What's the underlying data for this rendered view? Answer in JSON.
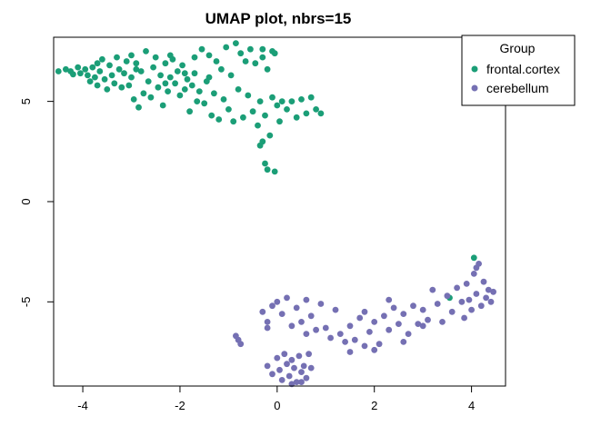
{
  "chart_data": {
    "type": "scatter",
    "title": "UMAP plot, nbrs=15",
    "xlabel": "",
    "ylabel": "",
    "xlim": [
      -4.6,
      4.7
    ],
    "ylim": [
      -9.2,
      8.2
    ],
    "x_ticks": [
      -4,
      -2,
      0,
      2,
      4
    ],
    "x_tick_labels": [
      "-4",
      "-2",
      "0",
      "2",
      "4"
    ],
    "y_ticks": [
      -5,
      0,
      5
    ],
    "y_tick_labels": [
      "-5",
      "0",
      "5"
    ],
    "grid": false,
    "legend": {
      "title": "Group",
      "position": "top-right",
      "entries": [
        {
          "label": "frontal.cortex",
          "color": "#1b9e77"
        },
        {
          "label": "cerebellum",
          "color": "#7570b3"
        }
      ]
    },
    "series": [
      {
        "name": "frontal.cortex",
        "color": "#1b9e77",
        "points": [
          [
            -4.5,
            6.5
          ],
          [
            -4.35,
            6.6
          ],
          [
            -4.25,
            6.5
          ],
          [
            -4.2,
            6.35
          ],
          [
            -4.1,
            6.7
          ],
          [
            -4.05,
            6.4
          ],
          [
            -3.95,
            6.6
          ],
          [
            -3.9,
            6.3
          ],
          [
            -3.85,
            6.0
          ],
          [
            -3.8,
            6.7
          ],
          [
            -3.75,
            6.2
          ],
          [
            -3.7,
            5.8
          ],
          [
            -3.65,
            6.5
          ],
          [
            -3.6,
            7.1
          ],
          [
            -3.55,
            6.1
          ],
          [
            -3.5,
            5.6
          ],
          [
            -3.45,
            6.8
          ],
          [
            -3.4,
            6.3
          ],
          [
            -3.35,
            5.9
          ],
          [
            -3.3,
            7.2
          ],
          [
            -3.25,
            6.6
          ],
          [
            -3.2,
            5.7
          ],
          [
            -3.15,
            6.4
          ],
          [
            -3.1,
            7.0
          ],
          [
            -3.05,
            5.8
          ],
          [
            -3.0,
            6.2
          ],
          [
            -2.95,
            5.1
          ],
          [
            -2.9,
            6.9
          ],
          [
            -2.85,
            4.7
          ],
          [
            -2.8,
            6.5
          ],
          [
            -2.75,
            5.4
          ],
          [
            -2.7,
            7.5
          ],
          [
            -2.65,
            6.0
          ],
          [
            -2.6,
            5.2
          ],
          [
            -2.55,
            6.7
          ],
          [
            -2.5,
            7.2
          ],
          [
            -2.45,
            5.7
          ],
          [
            -2.4,
            6.3
          ],
          [
            -2.35,
            4.8
          ],
          [
            -2.3,
            6.9
          ],
          [
            -2.25,
            5.5
          ],
          [
            -2.2,
            6.2
          ],
          [
            -2.15,
            7.1
          ],
          [
            -2.1,
            5.9
          ],
          [
            -2.05,
            6.5
          ],
          [
            -2.0,
            5.3
          ],
          [
            -1.95,
            6.8
          ],
          [
            -1.9,
            5.6
          ],
          [
            -1.85,
            6.1
          ],
          [
            -1.8,
            4.5
          ],
          [
            -1.75,
            5.8
          ],
          [
            -1.7,
            6.4
          ],
          [
            -1.65,
            5.0
          ],
          [
            -1.6,
            5.5
          ],
          [
            -1.55,
            7.6
          ],
          [
            -1.5,
            4.9
          ],
          [
            -1.45,
            6.0
          ],
          [
            -1.4,
            7.3
          ],
          [
            -1.35,
            4.3
          ],
          [
            -1.3,
            5.4
          ],
          [
            -1.25,
            7.0
          ],
          [
            -1.2,
            4.1
          ],
          [
            -1.15,
            6.6
          ],
          [
            -1.1,
            5.1
          ],
          [
            -1.05,
            7.7
          ],
          [
            -1.0,
            4.6
          ],
          [
            -0.95,
            6.3
          ],
          [
            -0.9,
            4.0
          ],
          [
            -0.85,
            7.9
          ],
          [
            -0.8,
            5.6
          ],
          [
            -0.75,
            7.4
          ],
          [
            -0.7,
            4.2
          ],
          [
            -0.65,
            7.0
          ],
          [
            -0.6,
            5.3
          ],
          [
            -0.55,
            7.6
          ],
          [
            -0.5,
            4.5
          ],
          [
            -0.45,
            6.9
          ],
          [
            -0.4,
            3.8
          ],
          [
            -0.35,
            5.0
          ],
          [
            -0.3,
            7.2
          ],
          [
            -0.25,
            4.3
          ],
          [
            -0.2,
            6.6
          ],
          [
            -0.15,
            3.3
          ],
          [
            -0.1,
            5.2
          ],
          [
            -0.05,
            7.4
          ],
          [
            0.0,
            4.8
          ],
          [
            0.05,
            4.0
          ],
          [
            0.1,
            5.0
          ],
          [
            0.2,
            4.6
          ],
          [
            0.3,
            5.0
          ],
          [
            0.4,
            4.2
          ],
          [
            0.5,
            5.1
          ],
          [
            0.6,
            4.4
          ],
          [
            0.7,
            5.2
          ],
          [
            0.8,
            4.6
          ],
          [
            0.9,
            4.4
          ],
          [
            -0.35,
            2.8
          ],
          [
            -0.3,
            3.0
          ],
          [
            -0.25,
            1.9
          ],
          [
            -0.2,
            1.6
          ],
          [
            -0.05,
            1.5
          ],
          [
            -3.7,
            6.9
          ],
          [
            -3.0,
            7.3
          ],
          [
            -2.2,
            7.3
          ],
          [
            -1.7,
            7.2
          ],
          [
            -0.3,
            7.6
          ],
          [
            -0.1,
            7.5
          ],
          [
            -2.9,
            6.6
          ],
          [
            -2.3,
            5.9
          ],
          [
            -1.9,
            6.4
          ],
          [
            -1.4,
            6.2
          ],
          [
            3.55,
            -4.8
          ],
          [
            4.05,
            -2.8
          ]
        ]
      },
      {
        "name": "cerebellum",
        "color": "#7570b3",
        "points": [
          [
            -0.85,
            -6.7
          ],
          [
            -0.8,
            -6.9
          ],
          [
            -0.75,
            -7.1
          ],
          [
            -0.3,
            -5.5
          ],
          [
            -0.2,
            -6.0
          ],
          [
            -0.1,
            -5.2
          ],
          [
            -0.2,
            -6.3
          ],
          [
            -0.2,
            -8.2
          ],
          [
            -0.1,
            -8.6
          ],
          [
            0.0,
            -7.8
          ],
          [
            0.05,
            -8.4
          ],
          [
            0.1,
            -8.9
          ],
          [
            0.15,
            -7.6
          ],
          [
            0.2,
            -8.1
          ],
          [
            0.25,
            -8.7
          ],
          [
            0.3,
            -7.9
          ],
          [
            0.35,
            -8.3
          ],
          [
            0.4,
            -9.0
          ],
          [
            0.45,
            -7.7
          ],
          [
            0.5,
            -8.5
          ],
          [
            0.55,
            -8.2
          ],
          [
            0.6,
            -8.8
          ],
          [
            0.65,
            -7.6
          ],
          [
            0.7,
            -8.3
          ],
          [
            0.3,
            -9.1
          ],
          [
            0.5,
            -9.0
          ],
          [
            0.0,
            -5.0
          ],
          [
            0.1,
            -5.6
          ],
          [
            0.2,
            -4.8
          ],
          [
            0.3,
            -6.2
          ],
          [
            0.4,
            -5.3
          ],
          [
            0.5,
            -6.0
          ],
          [
            0.6,
            -4.9
          ],
          [
            0.7,
            -5.7
          ],
          [
            0.8,
            -6.4
          ],
          [
            0.9,
            -5.1
          ],
          [
            1.0,
            -6.3
          ],
          [
            1.1,
            -6.8
          ],
          [
            1.2,
            -5.4
          ],
          [
            1.3,
            -6.6
          ],
          [
            1.4,
            -7.0
          ],
          [
            1.5,
            -6.2
          ],
          [
            1.6,
            -6.9
          ],
          [
            1.7,
            -5.8
          ],
          [
            1.8,
            -7.2
          ],
          [
            1.9,
            -6.5
          ],
          [
            2.0,
            -6.0
          ],
          [
            2.1,
            -7.1
          ],
          [
            2.2,
            -5.7
          ],
          [
            2.3,
            -6.4
          ],
          [
            2.4,
            -5.3
          ],
          [
            2.5,
            -6.1
          ],
          [
            2.6,
            -5.6
          ],
          [
            2.7,
            -6.6
          ],
          [
            2.8,
            -5.2
          ],
          [
            2.9,
            -6.1
          ],
          [
            3.0,
            -5.4
          ],
          [
            3.1,
            -5.9
          ],
          [
            3.2,
            -4.4
          ],
          [
            3.3,
            -5.1
          ],
          [
            3.4,
            -6.0
          ],
          [
            3.5,
            -4.7
          ],
          [
            3.6,
            -5.5
          ],
          [
            3.7,
            -4.3
          ],
          [
            3.8,
            -5.0
          ],
          [
            3.85,
            -5.8
          ],
          [
            3.9,
            -4.1
          ],
          [
            3.95,
            -4.9
          ],
          [
            4.0,
            -5.4
          ],
          [
            4.05,
            -3.6
          ],
          [
            4.1,
            -4.6
          ],
          [
            4.15,
            -3.1
          ],
          [
            4.2,
            -5.2
          ],
          [
            4.25,
            -4.0
          ],
          [
            4.3,
            -4.8
          ],
          [
            4.35,
            -4.4
          ],
          [
            4.4,
            -5.0
          ],
          [
            4.45,
            -4.5
          ],
          [
            1.5,
            -7.5
          ],
          [
            2.0,
            -7.4
          ],
          [
            2.6,
            -7.0
          ],
          [
            3.0,
            -6.2
          ],
          [
            2.3,
            -4.9
          ],
          [
            1.8,
            -5.5
          ],
          [
            0.6,
            -6.6
          ],
          [
            4.1,
            -3.3
          ]
        ]
      }
    ]
  }
}
